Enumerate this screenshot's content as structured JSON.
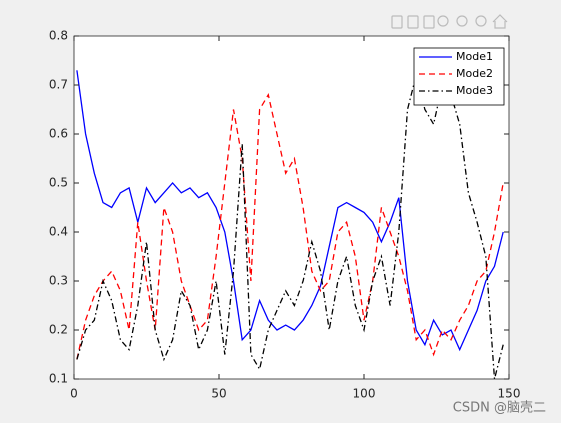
{
  "chart_data": {
    "type": "line",
    "x": [
      1,
      4,
      7,
      10,
      13,
      16,
      19,
      22,
      25,
      28,
      31,
      34,
      37,
      40,
      43,
      46,
      49,
      52,
      55,
      58,
      61,
      64,
      67,
      70,
      73,
      76,
      79,
      82,
      85,
      88,
      91,
      94,
      97,
      100,
      103,
      106,
      109,
      112,
      115,
      118,
      121,
      124,
      127,
      130,
      133,
      136,
      139,
      142,
      145,
      148
    ],
    "series": [
      {
        "name": "Mode1",
        "color": "#0000ff",
        "dash": "solid",
        "values": [
          0.73,
          0.6,
          0.52,
          0.46,
          0.45,
          0.48,
          0.49,
          0.42,
          0.49,
          0.46,
          0.48,
          0.5,
          0.48,
          0.49,
          0.47,
          0.48,
          0.45,
          0.4,
          0.3,
          0.18,
          0.2,
          0.26,
          0.22,
          0.2,
          0.21,
          0.2,
          0.22,
          0.25,
          0.29,
          0.37,
          0.45,
          0.46,
          0.45,
          0.44,
          0.42,
          0.38,
          0.42,
          0.47,
          0.3,
          0.2,
          0.17,
          0.22,
          0.19,
          0.2,
          0.16,
          0.2,
          0.24,
          0.3,
          0.33,
          0.4
        ]
      },
      {
        "name": "Mode2",
        "color": "#ff0000",
        "dash": "dashed",
        "values": [
          0.14,
          0.22,
          0.27,
          0.3,
          0.32,
          0.28,
          0.2,
          0.42,
          0.3,
          0.2,
          0.45,
          0.4,
          0.3,
          0.25,
          0.2,
          0.22,
          0.35,
          0.5,
          0.65,
          0.55,
          0.3,
          0.65,
          0.68,
          0.6,
          0.52,
          0.55,
          0.45,
          0.32,
          0.28,
          0.3,
          0.4,
          0.42,
          0.35,
          0.22,
          0.3,
          0.45,
          0.4,
          0.35,
          0.28,
          0.18,
          0.2,
          0.15,
          0.2,
          0.18,
          0.22,
          0.25,
          0.3,
          0.32,
          0.4,
          0.5
        ]
      },
      {
        "name": "Mode3",
        "color": "#000000",
        "dash": "dashdot",
        "values": [
          0.14,
          0.2,
          0.22,
          0.3,
          0.26,
          0.18,
          0.16,
          0.25,
          0.38,
          0.2,
          0.14,
          0.18,
          0.28,
          0.25,
          0.16,
          0.2,
          0.3,
          0.15,
          0.32,
          0.58,
          0.15,
          0.12,
          0.2,
          0.24,
          0.28,
          0.25,
          0.3,
          0.38,
          0.32,
          0.2,
          0.3,
          0.35,
          0.25,
          0.2,
          0.3,
          0.35,
          0.25,
          0.4,
          0.65,
          0.72,
          0.65,
          0.62,
          0.7,
          0.68,
          0.62,
          0.48,
          0.42,
          0.35,
          0.1,
          0.17
        ]
      }
    ],
    "xlim": [
      0,
      150
    ],
    "xticks": [
      0,
      50,
      100,
      150
    ],
    "ylim": [
      0.1,
      0.8
    ],
    "yticks": [
      0.1,
      0.2,
      0.3,
      0.4,
      0.5,
      0.6,
      0.7,
      0.8
    ],
    "legend": "top-right",
    "grid": false
  },
  "watermark": "CSDN @脑壳二"
}
